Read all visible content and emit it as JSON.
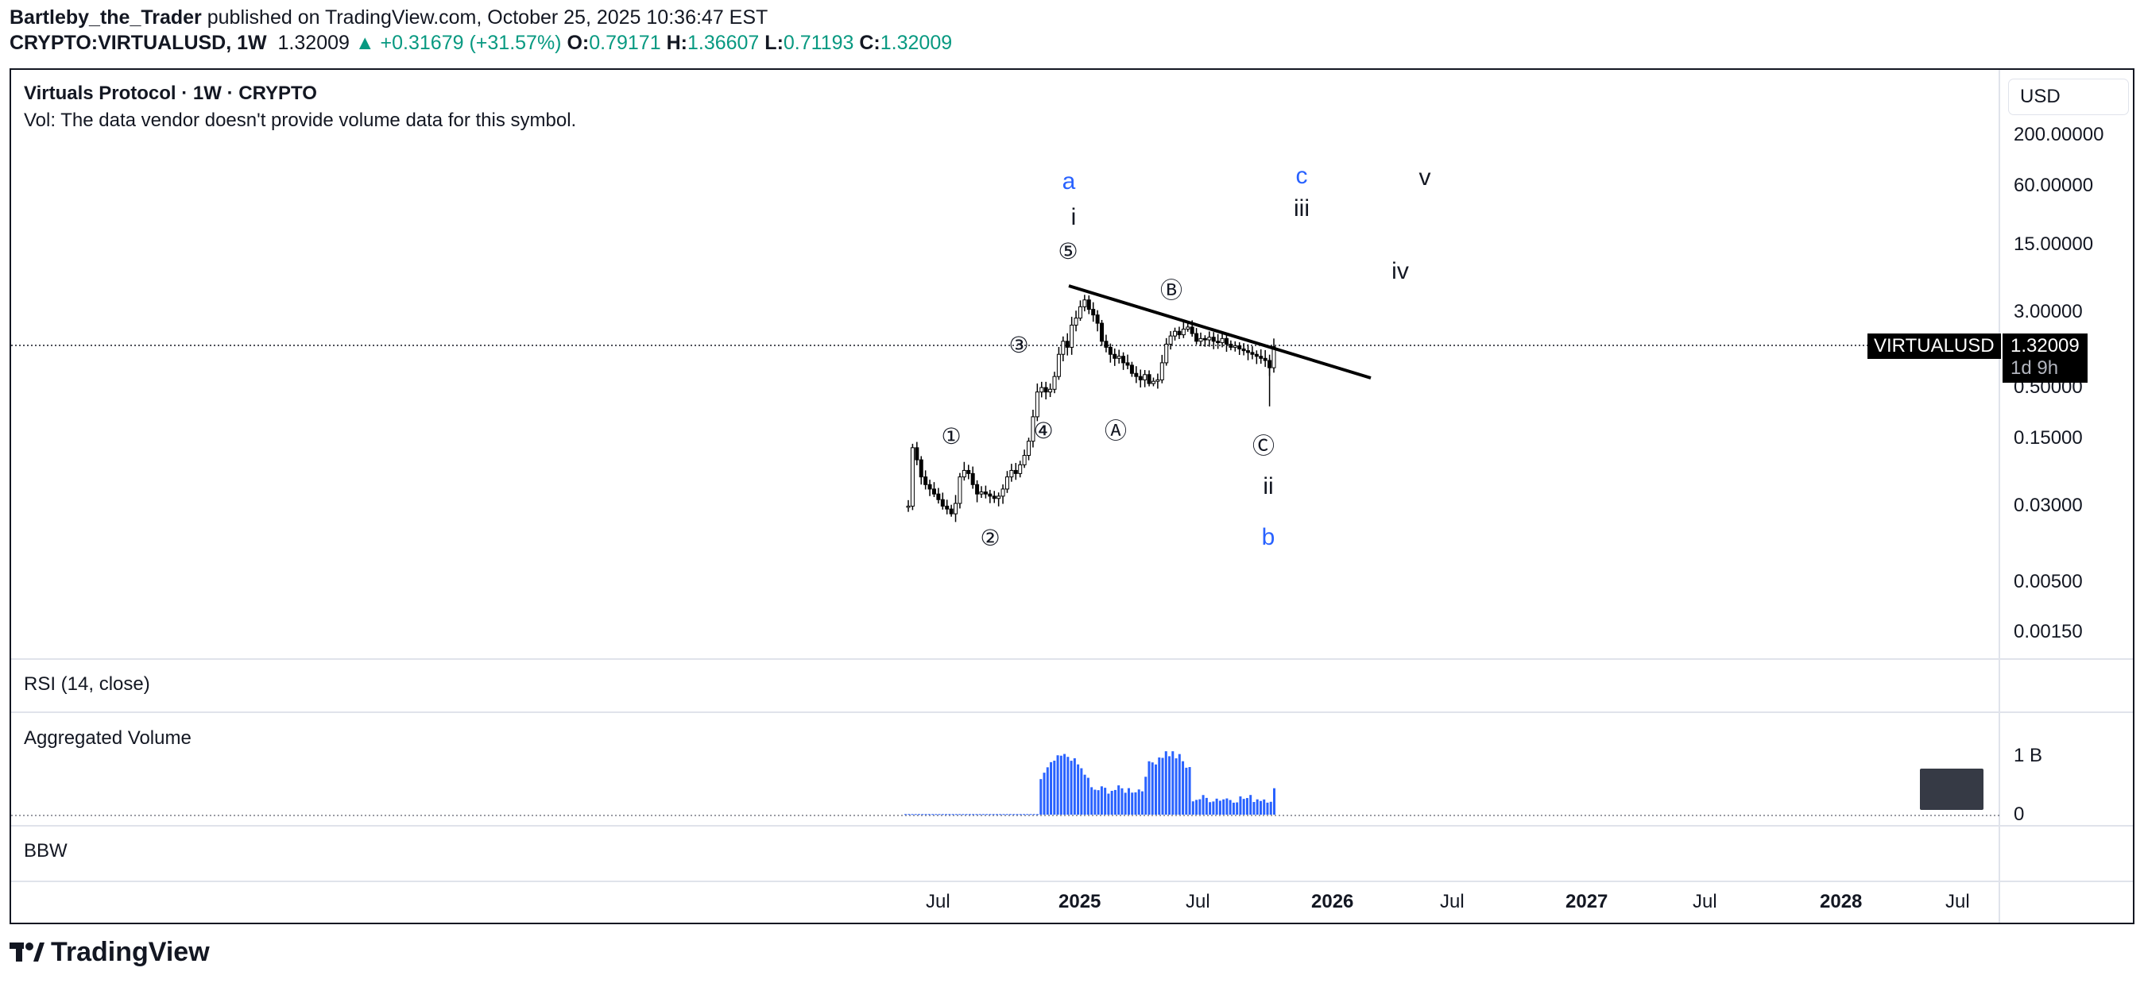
{
  "header": {
    "author": "Bartleby_the_Trader",
    "published_text": "published on TradingView.com, October 25, 2025 10:36:47 EST",
    "symbol": "CRYPTO:VIRTUALUSD, 1W",
    "last": "1.32009",
    "change": "▲ +0.31679 (+31.57%)",
    "o_label": "O:",
    "o_value": "0.79171",
    "h_label": "H:",
    "h_value": "1.36607",
    "l_label": "L:",
    "l_value": "0.71193",
    "c_label": "C:",
    "c_value": "1.32009"
  },
  "main_pane": {
    "title": "Virtuals Protocol · 1W · CRYPTO",
    "vol_note": "Vol: The data vendor doesn't provide volume data for this symbol.",
    "currency": "USD",
    "price_badge_symbol": "VIRTUALUSD",
    "price_badge_value": "1.32009",
    "price_badge_countdown": "1d 9h"
  },
  "rsi_pane": {
    "title": "RSI (14, close)"
  },
  "volume_pane": {
    "title": "Aggregated Volume",
    "axis_labels": [
      "1 B",
      "0"
    ]
  },
  "bbw_pane": {
    "title": "BBW"
  },
  "time_axis": [
    {
      "label": "Jul",
      "bold": false
    },
    {
      "label": "2025",
      "bold": true
    },
    {
      "label": "Jul",
      "bold": false
    },
    {
      "label": "2026",
      "bold": true
    },
    {
      "label": "Jul",
      "bold": false
    },
    {
      "label": "2027",
      "bold": true
    },
    {
      "label": "Jul",
      "bold": false
    },
    {
      "label": "2028",
      "bold": true
    },
    {
      "label": "Jul",
      "bold": false
    }
  ],
  "footer": {
    "brand": "TradingView"
  },
  "colors": {
    "accent": "#2962ff",
    "up": "#089981",
    "candle": "#000000",
    "volume": "#2962ff"
  },
  "chart_data": {
    "type": "candlestick",
    "symbol": "VIRTUALUSD",
    "interval": "1W",
    "scale": "log",
    "price_axis_ticks": [
      200,
      60,
      15,
      3,
      0.5,
      0.15,
      0.03,
      0.005,
      0.0015
    ],
    "price_axis_labels": [
      "200.00000",
      "60.00000",
      "15.00000",
      "3.00000",
      "0.50000",
      "0.15000",
      "0.03000",
      "0.00500",
      "0.00150"
    ],
    "last_price": 1.32009,
    "weekly_close_approx": [
      0.03,
      0.12,
      0.09,
      0.06,
      0.05,
      0.045,
      0.04,
      0.035,
      0.03,
      0.028,
      0.025,
      0.032,
      0.06,
      0.07,
      0.065,
      0.05,
      0.04,
      0.042,
      0.04,
      0.038,
      0.036,
      0.038,
      0.045,
      0.06,
      0.07,
      0.065,
      0.08,
      0.1,
      0.14,
      0.25,
      0.45,
      0.5,
      0.45,
      0.48,
      0.65,
      1.1,
      1.5,
      1.3,
      2.2,
      2.6,
      3.4,
      4.0,
      3.2,
      2.8,
      2.3,
      1.5,
      1.3,
      1.1,
      1.0,
      1.05,
      0.9,
      0.85,
      0.7,
      0.65,
      0.6,
      0.68,
      0.55,
      0.58,
      0.6,
      0.9,
      1.4,
      1.7,
      1.9,
      1.75,
      2.0,
      2.1,
      1.8,
      1.5,
      1.6,
      1.55,
      1.65,
      1.5,
      1.45,
      1.6,
      1.4,
      1.3,
      1.35,
      1.25,
      1.2,
      1.15,
      1.1,
      1.05,
      1.0,
      0.95,
      0.8,
      1.32
    ],
    "volume_scale_label": "1 B",
    "wave_labels": {
      "blue": [
        "a",
        "b",
        "c"
      ],
      "roman": [
        "i",
        "ii",
        "iii",
        "iv",
        "v"
      ],
      "circled": [
        "①",
        "②",
        "③",
        "④",
        "⑤",
        "Ⓐ",
        "Ⓑ",
        "Ⓒ"
      ]
    },
    "trendline": "descending line from ~4.5 (early 2025 high) through ~1.3 (Oct 2025), projected to ~0.75"
  }
}
